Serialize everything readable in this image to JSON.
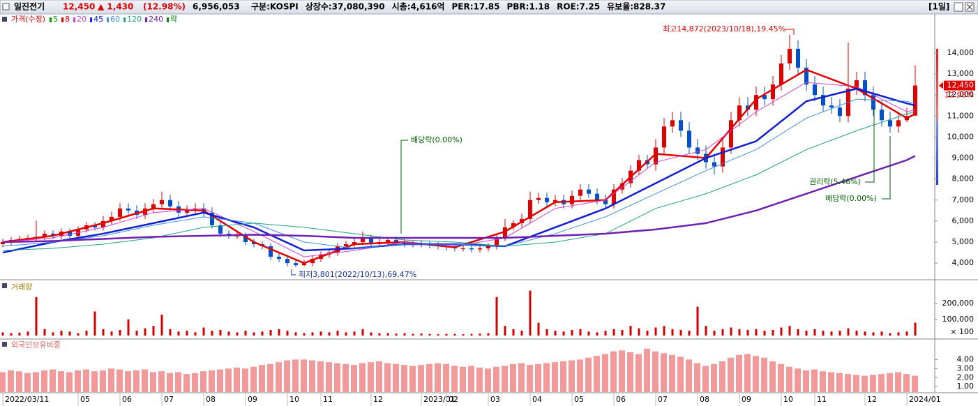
{
  "header": {
    "name": "일진전기",
    "price": "12,450",
    "change": "▲ 1,430",
    "change_pct": "(12.98%)",
    "volume": "6,956,053",
    "fields": [
      "구분:KOSPI",
      "상장수:37,080,390",
      "시총:4,616억",
      "PER:17.85",
      "PBR:1.18",
      "ROE:7.25",
      "유보율:828.37"
    ],
    "period": "[1일]"
  },
  "chart_data": [
    {
      "type": "candlestick",
      "title": "가격(수정)",
      "title_color": "#e00000",
      "up_color": "#e00000",
      "down_color": "#0050d0",
      "open": [
        4900,
        5000,
        5100,
        5150,
        5200,
        5250,
        5400,
        5300,
        5500,
        5300,
        5600,
        5800,
        5700,
        6000,
        6200,
        6600,
        6500,
        6300,
        6600,
        6800,
        7000,
        6700,
        6400,
        6500,
        6600,
        6400,
        5800,
        5400,
        5300,
        5300,
        5000,
        4900,
        4800,
        4300,
        4200,
        4000,
        3900,
        4000,
        4200,
        4400,
        4500,
        4800,
        4900,
        5000,
        5200,
        4900,
        5000,
        5100,
        5000,
        4900,
        4900,
        4900,
        4850,
        4800,
        4750,
        4700,
        4700,
        4650,
        4700,
        4800,
        5200,
        5700,
        5900,
        6100,
        7000,
        7100,
        6900,
        7000,
        6800,
        7200,
        7500,
        7300,
        7000,
        6800,
        7500,
        7800,
        8400,
        8900,
        8700,
        9500,
        10500,
        10800,
        10300,
        9500,
        9200,
        8800,
        8600,
        9500,
        10800,
        11500,
        11300,
        12000,
        11800,
        12500,
        13500,
        14200,
        13300,
        12500,
        12000,
        11500,
        11400,
        11000,
        12300,
        12700,
        12000,
        11300,
        10800,
        10500,
        10800,
        11020
      ],
      "high": [
        5150,
        5250,
        5300,
        5350,
        6000,
        5550,
        5550,
        5650,
        5650,
        5750,
        5950,
        5950,
        6250,
        6450,
        6850,
        6850,
        6750,
        6850,
        7050,
        7400,
        7250,
        6950,
        6750,
        6850,
        6850,
        6650,
        5950,
        5550,
        5450,
        5450,
        5150,
        5050,
        4950,
        4450,
        4350,
        4150,
        4150,
        4350,
        4550,
        4650,
        4950,
        5050,
        5150,
        5500,
        5350,
        5150,
        5250,
        5250,
        5150,
        5050,
        5050,
        5050,
        5000,
        4950,
        4900,
        4850,
        4850,
        4850,
        4950,
        5350,
        6100,
        6050,
        6350,
        7400,
        7350,
        7350,
        7250,
        7250,
        7450,
        7750,
        7750,
        7550,
        7250,
        7750,
        8050,
        8650,
        9150,
        9150,
        9900,
        10900,
        11200,
        11200,
        10700,
        9900,
        9600,
        9200,
        9900,
        11200,
        11900,
        11900,
        12400,
        12400,
        12900,
        13900,
        14872,
        14600,
        13700,
        12900,
        12400,
        11900,
        11800,
        14500,
        13100,
        13100,
        12400,
        11700,
        11200,
        11200,
        11400,
        13400
      ],
      "low": [
        4750,
        4850,
        4950,
        5000,
        5050,
        5100,
        5150,
        5150,
        5150,
        5150,
        5450,
        5550,
        5550,
        5800,
        6000,
        6300,
        6100,
        6100,
        6400,
        6600,
        6500,
        6200,
        6200,
        6300,
        6200,
        5650,
        5250,
        5150,
        5150,
        4850,
        4750,
        4650,
        4150,
        4050,
        3850,
        3801,
        3850,
        3850,
        4050,
        4250,
        4350,
        4650,
        4750,
        4850,
        4750,
        4750,
        4850,
        4850,
        4750,
        4750,
        4750,
        4700,
        4650,
        4600,
        4550,
        4550,
        4500,
        4500,
        4550,
        4650,
        5050,
        5550,
        5700,
        5900,
        6800,
        6700,
        6700,
        6600,
        6600,
        7000,
        7100,
        6800,
        6600,
        6600,
        7300,
        7600,
        8200,
        8500,
        8400,
        9200,
        10200,
        10000,
        9200,
        8900,
        8500,
        8200,
        8300,
        9200,
        10500,
        11000,
        11000,
        11500,
        11500,
        12200,
        13200,
        13000,
        12200,
        11700,
        11200,
        11100,
        10700,
        10700,
        12000,
        11700,
        11000,
        10500,
        10200,
        10200,
        10700,
        11000
      ],
      "close": [
        5000,
        5100,
        5150,
        5200,
        5250,
        5400,
        5300,
        5500,
        5300,
        5600,
        5800,
        5700,
        6000,
        6200,
        6600,
        6500,
        6300,
        6600,
        6800,
        7000,
        6700,
        6400,
        6500,
        6600,
        6400,
        5800,
        5400,
        5300,
        5300,
        5000,
        4900,
        4800,
        4300,
        4200,
        4000,
        3900,
        4000,
        4200,
        4400,
        4500,
        4800,
        4900,
        5000,
        5200,
        4900,
        5000,
        5100,
        5000,
        4900,
        4900,
        4900,
        4850,
        4800,
        4750,
        4700,
        4700,
        4650,
        4700,
        4800,
        5200,
        5700,
        5900,
        6100,
        7000,
        7100,
        6900,
        7000,
        6800,
        7200,
        7500,
        7300,
        7000,
        6800,
        7500,
        7800,
        8400,
        8900,
        8700,
        9500,
        10500,
        10800,
        10300,
        9500,
        9200,
        8800,
        8600,
        9500,
        10800,
        11500,
        11300,
        12000,
        11800,
        12500,
        13500,
        14200,
        13300,
        12500,
        12000,
        11500,
        11400,
        11000,
        12300,
        12700,
        12000,
        11300,
        10800,
        10500,
        10800,
        11000,
        12450
      ],
      "ma_x": [
        0,
        6,
        12,
        18,
        24,
        30,
        36,
        42,
        48,
        54,
        60,
        66,
        72,
        78,
        84,
        90,
        96,
        102,
        108,
        109
      ],
      "series": [
        {
          "name": "5",
          "color": "#00a000"
        },
        {
          "name": "8",
          "color": "#e00000",
          "width": 2.5,
          "values": [
            5000,
            5300,
            5900,
            6600,
            6500,
            5000,
            4000,
            4900,
            5000,
            4750,
            5500,
            6900,
            7000,
            9200,
            9000,
            11800,
            13200,
            12300,
            10900,
            11100
          ]
        },
        {
          "name": "20",
          "color": "#d040d0",
          "width": 1,
          "values": [
            5000,
            5200,
            5700,
            6400,
            6600,
            5500,
            4300,
            4600,
            5000,
            4800,
            5200,
            6600,
            7000,
            8800,
            9400,
            11200,
            12600,
            12400,
            11200,
            11300
          ]
        },
        {
          "name": "45",
          "color": "#1020d0",
          "width": 2.5,
          "values": [
            4500,
            5000,
            5400,
            5900,
            6400,
            5700,
            4600,
            4700,
            4900,
            4900,
            4800,
            5700,
            6600,
            7800,
            9000,
            9800,
            11700,
            12300,
            11600,
            11500
          ]
        },
        {
          "name": "60",
          "color": "#4090e0",
          "width": 1,
          "values": [
            4800,
            5000,
            5300,
            5800,
            6200,
            5900,
            5000,
            4700,
            4900,
            4900,
            4800,
            5400,
            6200,
            7300,
            8400,
            9400,
            10900,
            11800,
            11700,
            11600
          ]
        },
        {
          "name": "120",
          "color": "#20a080",
          "width": 1,
          "values": [
            4600,
            4700,
            4900,
            5200,
            5700,
            5900,
            5700,
            5400,
            5100,
            5000,
            4800,
            5000,
            5400,
            6600,
            7300,
            8200,
            9400,
            10300,
            11100,
            11200
          ]
        },
        {
          "name": "240",
          "color": "#7020b0",
          "width": 2.5,
          "values": [
            5000,
            5050,
            5150,
            5250,
            5300,
            5350,
            5300,
            5200,
            5200,
            5200,
            5200,
            5300,
            5400,
            5600,
            5900,
            6500,
            7300,
            8100,
            8900,
            9100
          ]
        },
        {
          "name": "락",
          "color": "#008000"
        }
      ],
      "ylim": [
        3240,
        15790
      ],
      "yticks": [
        {
          "value": 4000,
          "label": "4,000"
        },
        {
          "value": 5000,
          "label": "5,000"
        },
        {
          "value": 6000,
          "label": "6,000"
        },
        {
          "value": 7000,
          "label": "7,000"
        },
        {
          "value": 8000,
          "label": "8,000"
        },
        {
          "value": 9000,
          "label": "9,000"
        },
        {
          "value": 10000,
          "label": "10,000"
        },
        {
          "value": 11000,
          "label": "11,000"
        },
        {
          "value": 12000,
          "label": "12,000"
        },
        {
          "value": 13000,
          "label": "13,000"
        },
        {
          "value": 14000,
          "label": "14,000"
        }
      ],
      "last_price_label": "12,450",
      "last_change_label": "12.98%",
      "annotations": [
        {
          "text": "최고14,872(2023/10/18),19.45%"
        },
        {
          "text": "최저3,801(2022/10/13),69.47%"
        },
        {
          "text": "배당락(0.00%)"
        },
        {
          "text": "권리락(5.46%)"
        },
        {
          "text": "배당락(0.00%)"
        }
      ]
    },
    {
      "type": "bar",
      "title": "거래량",
      "color": "#d00000",
      "values": [
        20000,
        15000,
        18000,
        25000,
        240000,
        40000,
        20000,
        30000,
        25000,
        15000,
        30000,
        150000,
        40000,
        25000,
        35000,
        100000,
        30000,
        45000,
        60000,
        130000,
        40000,
        25000,
        30000,
        20000,
        50000,
        30000,
        35000,
        25000,
        20000,
        30000,
        20000,
        25000,
        35000,
        40000,
        30000,
        20000,
        15000,
        20000,
        25000,
        20000,
        30000,
        20000,
        25000,
        40000,
        20000,
        15000,
        15000,
        12000,
        15000,
        10000,
        12000,
        10000,
        8000,
        10000,
        10000,
        8000,
        10000,
        12000,
        15000,
        240000,
        60000,
        40000,
        30000,
        280000,
        80000,
        40000,
        30000,
        25000,
        35000,
        40000,
        25000,
        20000,
        30000,
        40000,
        35000,
        60000,
        45000,
        30000,
        50000,
        60000,
        40000,
        35000,
        30000,
        180000,
        60000,
        30000,
        40000,
        50000,
        40000,
        35000,
        40000,
        30000,
        35000,
        50000,
        60000,
        40000,
        30000,
        40000,
        30000,
        25000,
        30000,
        45000,
        30000,
        25000,
        20000,
        25000,
        15000,
        20000,
        25000,
        80000
      ],
      "ylim": [
        0,
        300000
      ],
      "yticks": [
        {
          "value": 100000,
          "label": "100,000"
        },
        {
          "value": 200000,
          "label": "200,000"
        }
      ],
      "unit_label": "× 100"
    },
    {
      "type": "bar",
      "title": "외국인보유비중",
      "color": "#f29a9a",
      "values": [
        2.6,
        2.8,
        2.7,
        2.5,
        2.6,
        2.8,
        2.9,
        2.7,
        2.6,
        2.8,
        2.9,
        2.7,
        2.8,
        3.0,
        2.9,
        2.7,
        2.8,
        2.9,
        2.6,
        2.7,
        2.5,
        2.6,
        2.4,
        2.5,
        2.7,
        2.8,
        2.9,
        3.0,
        3.1,
        3.0,
        3.2,
        3.4,
        3.5,
        3.7,
        3.9,
        4.0,
        4.0,
        3.9,
        3.8,
        3.7,
        3.6,
        3.5,
        3.4,
        3.6,
        3.7,
        3.8,
        3.6,
        3.5,
        3.4,
        3.3,
        3.4,
        3.5,
        3.6,
        3.5,
        3.3,
        3.2,
        3.3,
        3.1,
        3.0,
        3.2,
        3.3,
        3.5,
        3.6,
        3.4,
        3.5,
        3.6,
        3.7,
        3.8,
        3.9,
        4.0,
        4.2,
        4.4,
        4.6,
        4.9,
        5.0,
        4.8,
        4.6,
        5.2,
        4.9,
        4.7,
        4.5,
        4.3,
        4.0,
        3.6,
        3.3,
        3.5,
        3.8,
        4.2,
        4.5,
        4.6,
        4.4,
        4.2,
        3.8,
        3.5,
        3.2,
        3.0,
        2.8,
        2.9,
        2.7,
        2.6,
        2.5,
        2.4,
        2.3,
        2.2,
        2.3,
        2.4,
        2.5,
        2.6,
        2.4,
        2.2
      ],
      "ylim": [
        0.4,
        5.8
      ],
      "yticks": [
        {
          "value": 1,
          "label": "1.00"
        },
        {
          "value": 2,
          "label": "2.00"
        },
        {
          "value": 3,
          "label": "3.00"
        },
        {
          "value": 4,
          "label": "4.00"
        }
      ],
      "categories": [
        "2022/03/11",
        null,
        null,
        null,
        null,
        null,
        null,
        null,
        null,
        "05",
        null,
        null,
        null,
        null,
        "06",
        null,
        null,
        null,
        null,
        "07",
        null,
        null,
        null,
        null,
        "08",
        null,
        null,
        null,
        null,
        "09",
        null,
        null,
        null,
        null,
        "10",
        null,
        null,
        null,
        "11",
        null,
        null,
        null,
        null,
        null,
        "12",
        null,
        null,
        null,
        null,
        null,
        "2023/01",
        null,
        null,
        "02",
        null,
        null,
        null,
        null,
        "03",
        null,
        null,
        null,
        null,
        "04",
        null,
        null,
        null,
        null,
        "05",
        null,
        null,
        null,
        null,
        "06",
        null,
        null,
        null,
        null,
        "07",
        null,
        null,
        null,
        null,
        "08",
        null,
        null,
        null,
        null,
        "09",
        null,
        null,
        null,
        null,
        "10",
        null,
        null,
        null,
        "11",
        null,
        null,
        null,
        null,
        null,
        "12",
        null,
        null,
        null,
        null,
        "2024/01",
        null
      ]
    }
  ]
}
